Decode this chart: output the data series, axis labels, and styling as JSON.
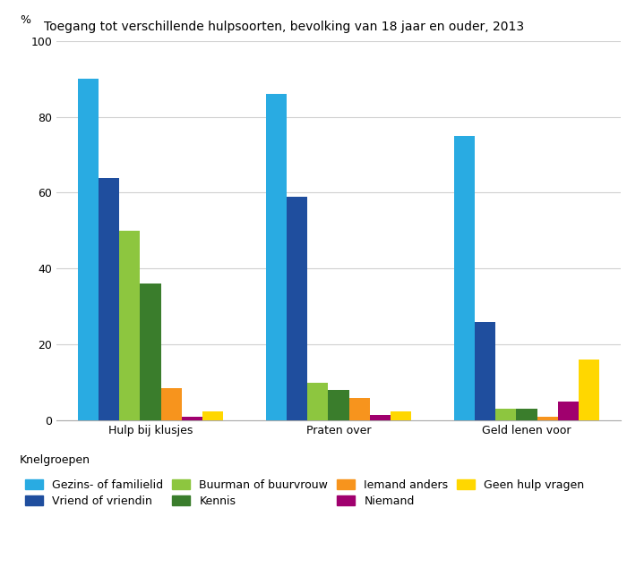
{
  "title": "Toegang tot verschillende hulpsoorten, bevolking van 18 jaar en ouder, 2013",
  "ylabel": "%",
  "ylim": [
    0,
    100
  ],
  "yticks": [
    0,
    20,
    40,
    60,
    80,
    100
  ],
  "categories": [
    "Hulp bij klusjes",
    "Praten over",
    "Geld lenen voor"
  ],
  "series": [
    {
      "label": "Gezins- of familielid",
      "color": "#29abe2",
      "values": [
        90,
        86,
        75
      ]
    },
    {
      "label": "Vriend of vriendin",
      "color": "#1f4e9e",
      "values": [
        64,
        59,
        26
      ]
    },
    {
      "label": "Buurman of buurvrouw",
      "color": "#8dc63f",
      "values": [
        50,
        10,
        3
      ]
    },
    {
      "label": "Kennis",
      "color": "#3a7d2c",
      "values": [
        36,
        8,
        3
      ]
    },
    {
      "label": "Iemand anders",
      "color": "#f7941d",
      "values": [
        8.5,
        6,
        1
      ]
    },
    {
      "label": "Niemand",
      "color": "#a0006e",
      "values": [
        1,
        1.5,
        5
      ]
    },
    {
      "label": "Geen hulp vragen",
      "color": "#ffd700",
      "values": [
        2.5,
        2.5,
        16
      ]
    }
  ],
  "background_color": "#ffffff",
  "grid_color": "#d0d0d0",
  "title_fontsize": 10,
  "axis_fontsize": 9,
  "legend_fontsize": 9
}
